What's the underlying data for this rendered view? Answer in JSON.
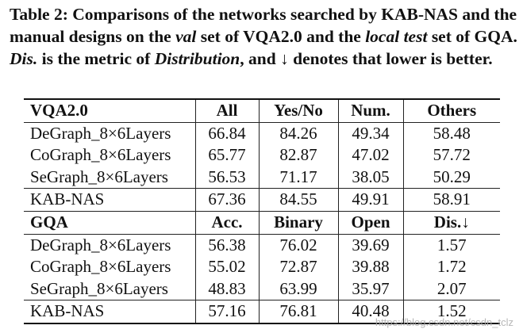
{
  "caption": {
    "p1": "Table 2: Comparisons of the networks searched by KAB-NAS and the manual designs on the ",
    "val": "val",
    "p2": " set of VQA2.0 and the ",
    "local_test": "local test",
    "p3": " set of GQA. ",
    "dis": "Dis.",
    "p4": " is the metric of ",
    "distribution": "Distribution",
    "p5": ", and ↓ denotes that lower is better."
  },
  "table": {
    "vqa": {
      "headers": [
        "VQA2.0",
        "All",
        "Yes/No",
        "Num.",
        "Others"
      ],
      "rows": [
        [
          "DeGraph_8×6Layers",
          "66.84",
          "84.26",
          "49.34",
          "58.48"
        ],
        [
          "CoGraph_8×6Layers",
          "65.77",
          "82.87",
          "47.02",
          "57.72"
        ],
        [
          "SeGraph_8×6Layers",
          "56.53",
          "71.17",
          "38.05",
          "50.29"
        ]
      ],
      "kab": [
        "KAB-NAS",
        "67.36",
        "84.55",
        "49.91",
        "58.91"
      ]
    },
    "gqa": {
      "headers": [
        "GQA",
        "Acc.",
        "Binary",
        "Open",
        "Dis.↓"
      ],
      "rows": [
        [
          "DeGraph_8×6Layers",
          "56.38",
          "76.02",
          "39.69",
          "1.57"
        ],
        [
          "CoGraph_8×6Layers",
          "55.02",
          "72.87",
          "39.88",
          "1.72"
        ],
        [
          "SeGraph_8×6Layers",
          "48.83",
          "63.99",
          "35.97",
          "2.07"
        ]
      ],
      "kab": [
        "KAB-NAS",
        "57.16",
        "76.81",
        "40.48",
        "1.52"
      ]
    }
  },
  "watermark": "https://blog.csdn.net/csdn_tclz"
}
